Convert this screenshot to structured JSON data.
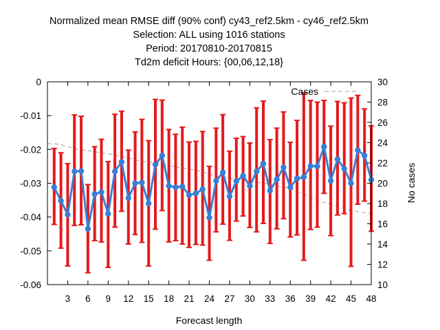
{
  "chart_data": {
    "type": "line",
    "title_lines": [
      "Normalized mean RMSE diff (90% conf) cy43_ref2.5km - cy46_ref2.5km",
      "Selection: ALL using  1016 stations",
      "Period: 20170810-20170815",
      "Td2m deficit   Hours: {00,06,12,18}"
    ],
    "xlabel": "Forecast length",
    "ylabel_right": "No cases",
    "xlim": [
      0,
      48
    ],
    "ylim_left": [
      -0.06,
      0
    ],
    "ylim_right": [
      10,
      30
    ],
    "x_ticks": [
      3,
      6,
      9,
      12,
      15,
      18,
      21,
      24,
      27,
      30,
      33,
      36,
      39,
      42,
      45,
      48
    ],
    "y_left_ticks": [
      0,
      -0.01,
      -0.02,
      -0.03,
      -0.04,
      -0.05,
      -0.06
    ],
    "y_left_tick_labels": [
      "0",
      "-0.01",
      "-0.02",
      "-0.03",
      "-0.04",
      "-0.05",
      "-0.06"
    ],
    "y_right_ticks": [
      10,
      12,
      14,
      16,
      18,
      20,
      22,
      24,
      26,
      28,
      30
    ],
    "legend": {
      "label": "Cases",
      "position": "top-right"
    },
    "grid": false,
    "series": [
      {
        "style": "line-with-errorbars",
        "color": "#3a7fd5",
        "errorbar_color": "#e41a1c",
        "x": [
          1,
          2,
          3,
          4,
          5,
          6,
          7,
          8,
          9,
          10,
          11,
          12,
          13,
          14,
          15,
          16,
          17,
          18,
          19,
          20,
          21,
          22,
          23,
          24,
          25,
          26,
          27,
          28,
          29,
          30,
          31,
          32,
          33,
          34,
          35,
          36,
          37,
          38,
          39,
          40,
          41,
          42,
          43,
          44,
          45,
          46,
          47,
          48
        ],
        "values": [
          -0.0312,
          -0.0352,
          -0.0393,
          -0.0265,
          -0.0264,
          -0.0435,
          -0.0332,
          -0.0326,
          -0.039,
          -0.0265,
          -0.0237,
          -0.0344,
          -0.03,
          -0.0298,
          -0.036,
          -0.0245,
          -0.0218,
          -0.0308,
          -0.0312,
          -0.031,
          -0.0335,
          -0.033,
          -0.0318,
          -0.0402,
          -0.0293,
          -0.0268,
          -0.0339,
          -0.0294,
          -0.0278,
          -0.0308,
          -0.0265,
          -0.0242,
          -0.0322,
          -0.0289,
          -0.0253,
          -0.0312,
          -0.0286,
          -0.0282,
          -0.0249,
          -0.025,
          -0.0192,
          -0.0293,
          -0.0229,
          -0.0257,
          -0.03,
          -0.0202,
          -0.0218,
          -0.029
        ],
        "upper": [
          -0.0197,
          -0.021,
          -0.0242,
          -0.0098,
          -0.0102,
          -0.0304,
          -0.0192,
          -0.017,
          -0.0236,
          -0.0096,
          -0.0087,
          -0.0202,
          -0.0148,
          -0.0111,
          -0.0174,
          -0.0052,
          -0.0054,
          -0.0141,
          -0.0155,
          -0.0134,
          -0.0178,
          -0.0176,
          -0.0147,
          -0.025,
          -0.0137,
          -0.0097,
          -0.0205,
          -0.0167,
          -0.0162,
          -0.0181,
          -0.0077,
          -0.0057,
          -0.0171,
          -0.0137,
          -0.0089,
          -0.0179,
          -0.0114,
          -0.0033,
          -0.0055,
          -0.006,
          -0.0055,
          -0.0131,
          -0.0058,
          -0.0062,
          -0.0048,
          -0.004,
          -0.008,
          -0.013
        ],
        "lower": [
          -0.0422,
          -0.0492,
          -0.0545,
          -0.0425,
          -0.0423,
          -0.0565,
          -0.047,
          -0.0474,
          -0.0549,
          -0.043,
          -0.0383,
          -0.048,
          -0.0452,
          -0.0475,
          -0.0545,
          -0.0436,
          -0.0381,
          -0.0474,
          -0.047,
          -0.048,
          -0.049,
          -0.0481,
          -0.0483,
          -0.0528,
          -0.0444,
          -0.0421,
          -0.0469,
          -0.0412,
          -0.0397,
          -0.0431,
          -0.0444,
          -0.0419,
          -0.0478,
          -0.0435,
          -0.0405,
          -0.0459,
          -0.0453,
          -0.0528,
          -0.0437,
          -0.043,
          -0.033,
          -0.0455,
          -0.0394,
          -0.039,
          -0.0546,
          -0.0362,
          -0.0353,
          -0.0442
        ]
      },
      {
        "name": "Cases",
        "style": "dashed-line",
        "axis": "right",
        "color": "#a0a0a0",
        "x": [
          0,
          1,
          2,
          3,
          4,
          5,
          6,
          7,
          8,
          9,
          10,
          11,
          12,
          13,
          14,
          15,
          16,
          17,
          18,
          19,
          20,
          21,
          22,
          23,
          24,
          25,
          26,
          27,
          28,
          29,
          30,
          31,
          32,
          33,
          34,
          35,
          36,
          37,
          38,
          39,
          40,
          41,
          42,
          43,
          44,
          45,
          46,
          47,
          48
        ],
        "values": [
          23.9,
          23.9,
          23.8,
          23.6,
          23.4,
          23.3,
          23.2,
          23.1,
          23.0,
          22.9,
          22.8,
          22.6,
          22.5,
          22.3,
          22.2,
          22.1,
          22.0,
          21.9,
          21.7,
          21.6,
          21.5,
          21.4,
          21.3,
          21.1,
          20.9,
          20.7,
          20.6,
          20.5,
          20.4,
          20.3,
          20.2,
          20.1,
          20.0,
          19.9,
          19.7,
          19.6,
          19.5,
          19.2,
          18.9,
          18.6,
          18.3,
          18.1,
          17.9,
          17.7,
          17.5,
          17.3,
          17.2,
          17.1,
          17.0
        ]
      }
    ]
  }
}
